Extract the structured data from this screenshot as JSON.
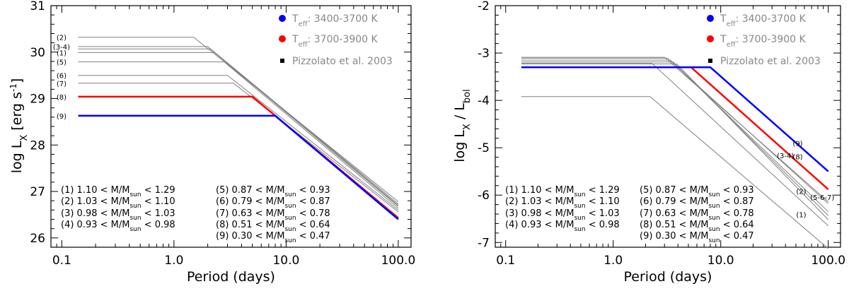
{
  "chart_data": [
    {
      "type": "line",
      "x_scale": "log",
      "xlim": [
        0.08,
        130
      ],
      "ylim": [
        25.8,
        31
      ],
      "xticks": [
        0.1,
        1,
        10,
        100
      ],
      "xtick_labels": [
        "0.1",
        "1.0",
        "10.0",
        "100.0"
      ],
      "yticks": [
        26,
        27,
        28,
        29,
        30,
        31
      ],
      "ytick_labels": [
        "26",
        "27",
        "28",
        "29",
        "30",
        "31"
      ],
      "xlabel": "Period (days)",
      "ylabel": {
        "main": "log L",
        "sub": "X",
        "unit_open": " [erg s",
        "unit_sup": "-1",
        "unit_close": "]"
      },
      "series": [
        {
          "name": "(2)",
          "label": "(2)",
          "color": "#808080",
          "width": 1,
          "x": [
            0.14,
            1.5,
            100
          ],
          "y": [
            30.32,
            30.32,
            26.78
          ]
        },
        {
          "name": "(3-4)",
          "label": "(3-4)",
          "color": "#808080",
          "width": 1,
          "x": [
            0.14,
            2.0,
            100
          ],
          "y": [
            30.12,
            30.12,
            26.73
          ]
        },
        {
          "name": "(3-4b)",
          "label": "",
          "color": "#808080",
          "width": 1,
          "x": [
            0.14,
            2.1,
            100
          ],
          "y": [
            30.07,
            30.07,
            26.7
          ]
        },
        {
          "name": "(1)",
          "label": "(1)",
          "color": "#808080",
          "width": 1,
          "x": [
            0.14,
            2.3,
            100
          ],
          "y": [
            29.99,
            29.99,
            26.68
          ]
        },
        {
          "name": "(5)",
          "label": "(5)",
          "color": "#808080",
          "width": 1,
          "x": [
            0.14,
            2.8,
            100
          ],
          "y": [
            29.79,
            29.79,
            26.64
          ]
        },
        {
          "name": "(6)",
          "label": "(6)",
          "color": "#808080",
          "width": 1,
          "x": [
            0.14,
            3.0,
            100
          ],
          "y": [
            29.5,
            29.5,
            26.6
          ]
        },
        {
          "name": "(7)",
          "label": "(7)",
          "color": "#808080",
          "width": 1,
          "x": [
            0.14,
            3.4,
            100
          ],
          "y": [
            29.33,
            29.33,
            26.56
          ]
        },
        {
          "name": "(8)",
          "label": "(8)",
          "color": "#ff0000",
          "width": 2.5,
          "x": [
            0.14,
            5.0,
            100
          ],
          "y": [
            29.04,
            29.04,
            26.43
          ]
        },
        {
          "name": "(9)",
          "label": "(9)",
          "color": "#0000ff",
          "width": 2.5,
          "x": [
            0.14,
            8.0,
            100
          ],
          "y": [
            28.63,
            28.63,
            26.4
          ]
        }
      ],
      "legend": [
        {
          "marker": "circle",
          "color": "#0000ff",
          "prefix": "T",
          "sub": "eff",
          "text": ": 3400-3700 K"
        },
        {
          "marker": "circle",
          "color": "#ff0000",
          "prefix": "T",
          "sub": "eff",
          "text": ": 3700-3900 K"
        },
        {
          "marker": "square",
          "color": "#000000",
          "prefix": "",
          "sub": "",
          "text": "Pizzolato et al. 2003"
        }
      ]
    },
    {
      "type": "line",
      "x_scale": "log",
      "xlim": [
        0.08,
        130
      ],
      "ylim": [
        -7.1,
        -2
      ],
      "xticks": [
        0.1,
        1,
        10,
        100
      ],
      "xtick_labels": [
        "0.1",
        "1.0",
        "10.0",
        "100.0"
      ],
      "yticks": [
        -7,
        -6,
        -5,
        -4,
        -3,
        -2
      ],
      "ytick_labels": [
        "-7",
        "-6",
        "-5",
        "-4",
        "-3",
        "-2"
      ],
      "xlabel": "Period (days)",
      "ylabel": {
        "main": "log  L",
        "sub": "X",
        "mid": " / L",
        "sub2": "bol"
      },
      "series": [
        {
          "name": "(1)",
          "label": "(1)",
          "color": "#808080",
          "width": 1,
          "x": [
            0.14,
            2.2,
            100
          ],
          "y": [
            -3.92,
            -3.92,
            -7.13
          ]
        },
        {
          "name": "(2)",
          "label": "(2)",
          "color": "#808080",
          "width": 1,
          "x": [
            0.14,
            2.3,
            100
          ],
          "y": [
            -3.22,
            -3.22,
            -6.65
          ]
        },
        {
          "name": "(3-4)",
          "label": "(3-4)",
          "color": "#808080",
          "width": 1,
          "x": [
            0.14,
            3.0,
            100
          ],
          "y": [
            -3.09,
            -3.09,
            -6.14
          ]
        },
        {
          "name": "(3-4b)",
          "label": "",
          "color": "#808080",
          "width": 1,
          "x": [
            0.14,
            3.2,
            100
          ],
          "y": [
            -3.11,
            -3.11,
            -6.18
          ]
        },
        {
          "name": "(5)",
          "label": "",
          "color": "#808080",
          "width": 1,
          "x": [
            0.14,
            3.4,
            100
          ],
          "y": [
            -3.15,
            -3.15,
            -6.35
          ]
        },
        {
          "name": "(6)",
          "label": "",
          "color": "#808080",
          "width": 1,
          "x": [
            0.14,
            3.6,
            100
          ],
          "y": [
            -3.19,
            -3.19,
            -6.43
          ]
        },
        {
          "name": "(7)",
          "label": "",
          "color": "#808080",
          "width": 1,
          "x": [
            0.14,
            3.9,
            100
          ],
          "y": [
            -3.23,
            -3.23,
            -6.52
          ]
        },
        {
          "name": "(8)",
          "label": "(8)",
          "color": "#ff0000",
          "width": 2.5,
          "x": [
            0.14,
            5.3,
            100
          ],
          "y": [
            -3.3,
            -3.3,
            -5.88
          ]
        },
        {
          "name": "(9)",
          "label": "(9)",
          "color": "#0000ff",
          "width": 2.5,
          "x": [
            0.14,
            8.0,
            100
          ],
          "y": [
            -3.3,
            -3.3,
            -5.5
          ]
        }
      ],
      "extra_labels": [
        "(5-6-7)"
      ],
      "legend": [
        {
          "marker": "circle",
          "color": "#0000ff",
          "prefix": "T",
          "sub": "eff",
          "text": ": 3400-3700 K"
        },
        {
          "marker": "circle",
          "color": "#ff0000",
          "prefix": "T",
          "sub": "eff",
          "text": ": 3700-3900 K"
        },
        {
          "marker": "square",
          "color": "#000000",
          "prefix": "",
          "sub": "",
          "text": "Pizzolato et al. 2003"
        }
      ]
    }
  ],
  "mass_key": [
    {
      "num": "(1)",
      "lo": "1.10",
      "hi": "1.29"
    },
    {
      "num": "(2)",
      "lo": "1.03",
      "hi": "1.10"
    },
    {
      "num": "(3)",
      "lo": "0.98",
      "hi": "1.03"
    },
    {
      "num": "(4)",
      "lo": "0.93",
      "hi": "0.98"
    },
    {
      "num": "(5)",
      "lo": "0.87",
      "hi": "0.93"
    },
    {
      "num": "(6)",
      "lo": "0.79",
      "hi": "0.87"
    },
    {
      "num": "(7)",
      "lo": "0.63",
      "hi": "0.78"
    },
    {
      "num": "(8)",
      "lo": "0.51",
      "hi": "0.64"
    },
    {
      "num": "(9)",
      "lo": "0.30",
      "hi": "0.47"
    }
  ],
  "mass_key_text": {
    "mid": "< M/M",
    "sub": "sun",
    "lt": "<"
  }
}
